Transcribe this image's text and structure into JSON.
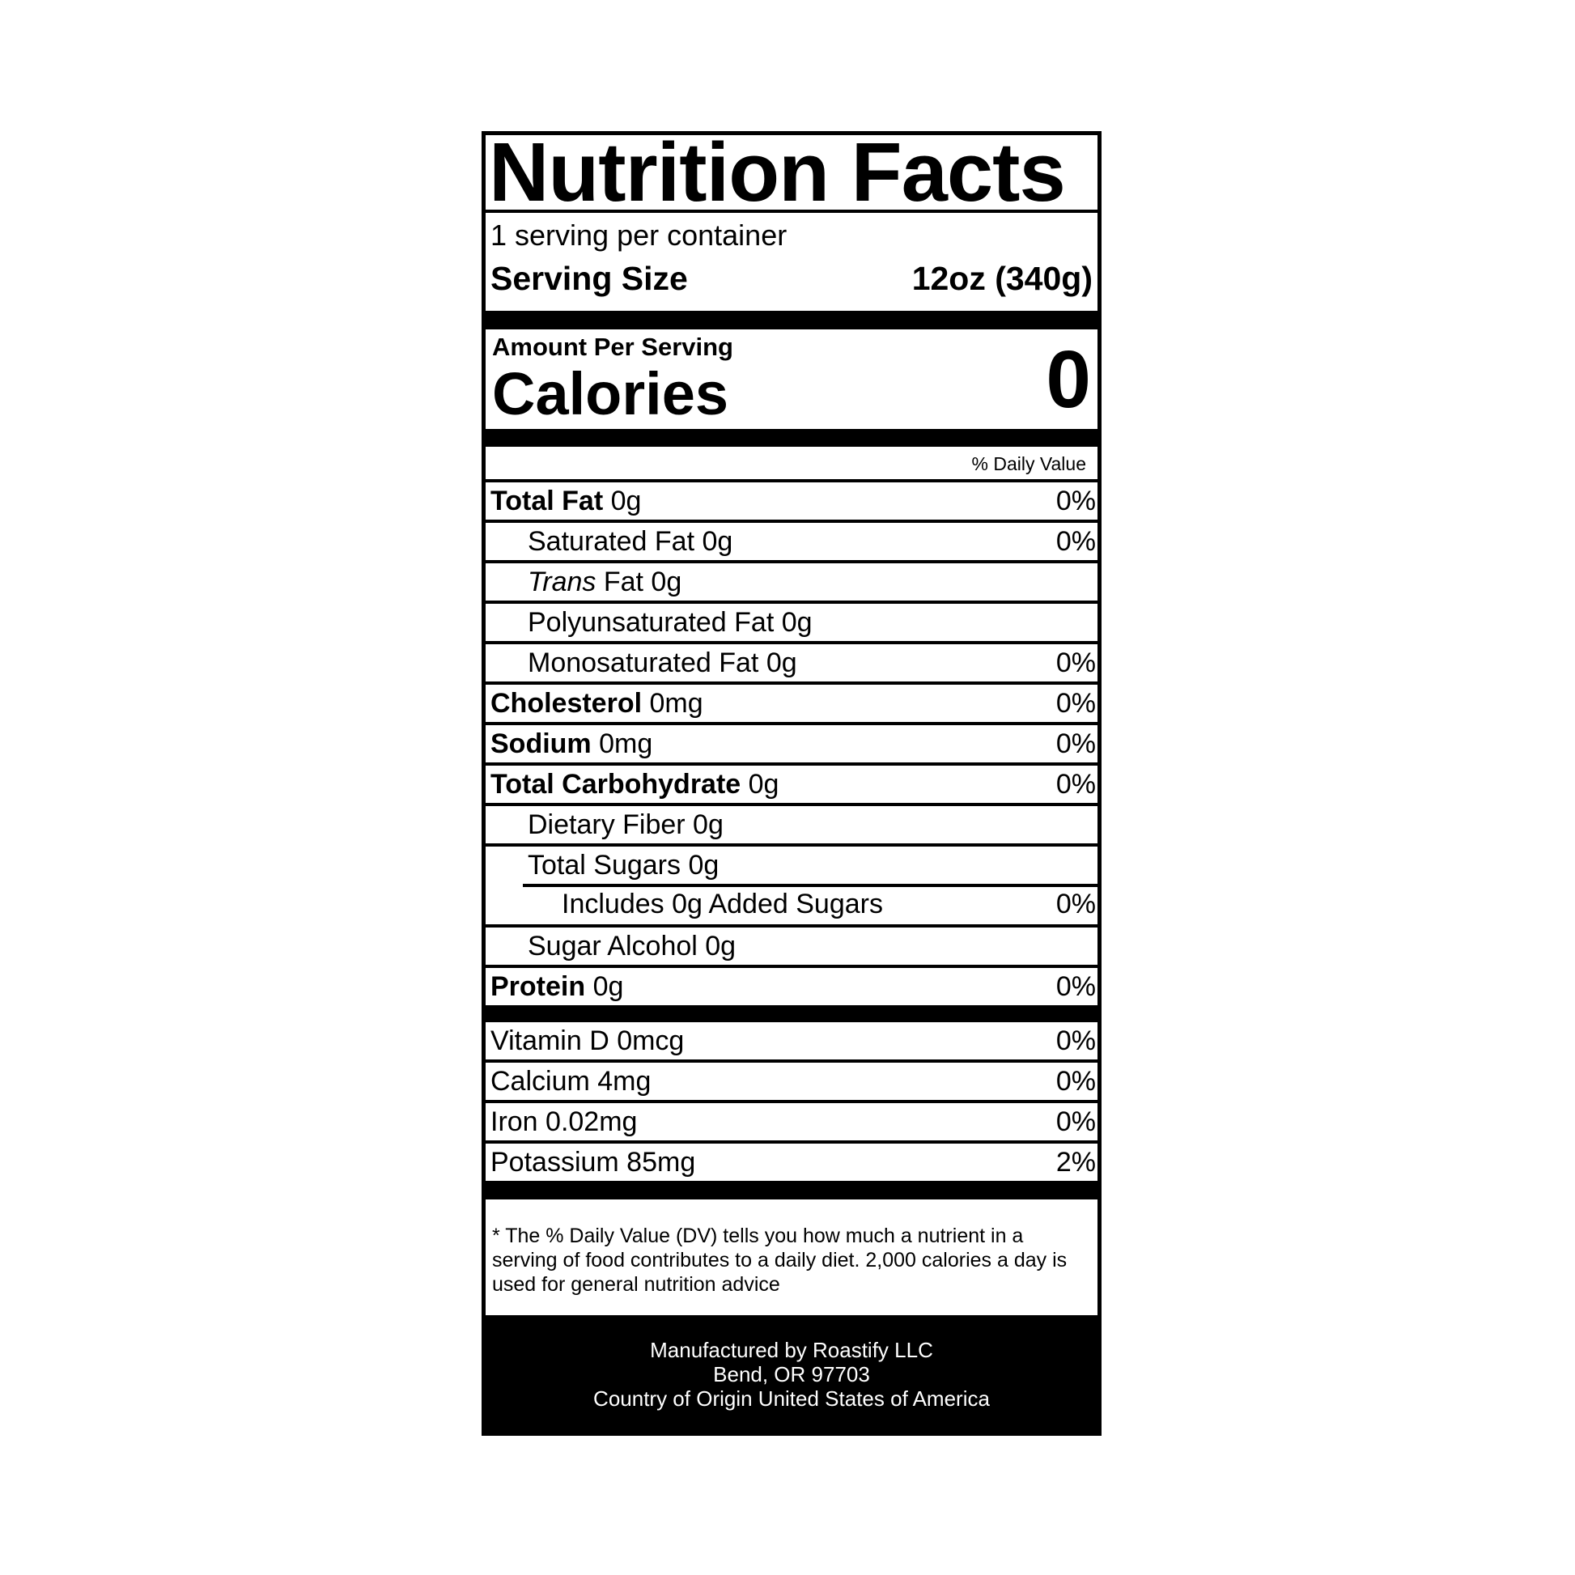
{
  "title": "Nutrition Facts",
  "servings_per_container": "1 serving per container",
  "serving_size": {
    "label": "Serving Size",
    "value": "12oz (340g)"
  },
  "amount_per_serving": "Amount Per Serving",
  "calories": {
    "label": "Calories",
    "value": "0"
  },
  "daily_value_header": "% Daily Value",
  "nutrients": [
    {
      "name": "Total Fat",
      "amount": "0g",
      "dv": "0%"
    },
    {
      "name": "Saturated Fat 0g",
      "dv": "0%"
    },
    {
      "name_italic": "Trans",
      "name": " Fat 0g",
      "dv": ""
    },
    {
      "name": "Polyunsaturated Fat 0g",
      "dv": ""
    },
    {
      "name": "Monosaturated Fat 0g",
      "dv": "0%"
    },
    {
      "name": "Cholesterol",
      "amount": "0mg",
      "dv": "0%"
    },
    {
      "name": "Sodium",
      "amount": "0mg",
      "dv": "0%"
    },
    {
      "name": "Total Carbohydrate",
      "amount": "0g",
      "dv": "0%"
    },
    {
      "name": "Dietary Fiber 0g",
      "dv": ""
    },
    {
      "name": "Total Sugars 0g",
      "dv": ""
    },
    {
      "name": "Includes 0g Added Sugars",
      "dv": "0%"
    },
    {
      "name": "Sugar Alcohol 0g",
      "dv": ""
    },
    {
      "name": "Protein",
      "amount": "0g",
      "dv": "0%"
    }
  ],
  "vitamins": [
    {
      "name": "Vitamin D 0mcg",
      "dv": "0%"
    },
    {
      "name": "Calcium 4mg",
      "dv": "0%"
    },
    {
      "name": "Iron 0.02mg",
      "dv": "0%"
    },
    {
      "name": "Potassium 85mg",
      "dv": "2%"
    }
  ],
  "footnote": "* The % Daily Value (DV) tells you how much a nutrient in a serving of food contributes to a daily diet. 2,000 calories a day is used for general nutrition advice",
  "manufacturer": {
    "line1": "Manufactured by Roastify LLC",
    "line2": "Bend, OR 97703",
    "line3": "Country of Origin United States of America"
  }
}
